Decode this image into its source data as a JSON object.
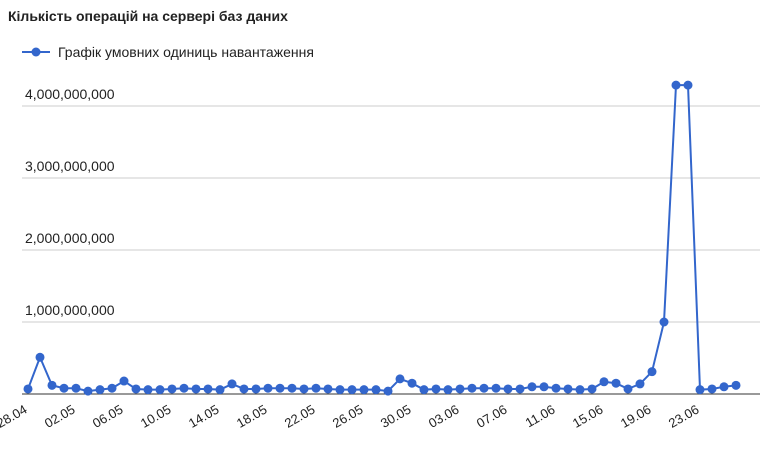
{
  "chart_data": {
    "type": "line",
    "title": "Кількість операцій на сервері баз даних",
    "categories": [
      "28.04",
      null,
      null,
      null,
      "02.05",
      null,
      null,
      null,
      "06.05",
      null,
      null,
      null,
      "10.05",
      null,
      null,
      null,
      "14.05",
      null,
      null,
      null,
      "18.05",
      null,
      null,
      null,
      "22.05",
      null,
      null,
      null,
      "26.05",
      null,
      null,
      null,
      "30.05",
      null,
      null,
      null,
      "03.06",
      null,
      null,
      null,
      "07.06",
      null,
      null,
      null,
      "11.06",
      null,
      null,
      null,
      "15.06",
      null,
      null,
      null,
      "19.06",
      null,
      null,
      null,
      "23.06",
      null,
      null,
      null
    ],
    "series": [
      {
        "name": "Графік умовних одиниць навантаження",
        "color": "#3366cc",
        "values": [
          70000000,
          510000000,
          120000000,
          80000000,
          80000000,
          40000000,
          60000000,
          80000000,
          180000000,
          70000000,
          60000000,
          60000000,
          70000000,
          80000000,
          70000000,
          70000000,
          60000000,
          140000000,
          70000000,
          70000000,
          80000000,
          80000000,
          80000000,
          70000000,
          80000000,
          70000000,
          60000000,
          60000000,
          60000000,
          60000000,
          40000000,
          210000000,
          150000000,
          60000000,
          70000000,
          60000000,
          70000000,
          80000000,
          80000000,
          80000000,
          70000000,
          70000000,
          100000000,
          100000000,
          80000000,
          70000000,
          60000000,
          70000000,
          170000000,
          150000000,
          70000000,
          140000000,
          310000000,
          1000000000,
          4290000000,
          4290000000,
          60000000,
          70000000,
          100000000,
          120000000
        ]
      }
    ],
    "ylim": [
      0,
      4500000000
    ],
    "yticks": [
      {
        "value": 1000000000,
        "label": "1,000,000,000"
      },
      {
        "value": 2000000000,
        "label": "2,000,000,000"
      },
      {
        "value": 3000000000,
        "label": "3,000,000,000"
      },
      {
        "value": 4000000000,
        "label": "4,000,000,000"
      }
    ],
    "grid": true,
    "legend": "top"
  }
}
